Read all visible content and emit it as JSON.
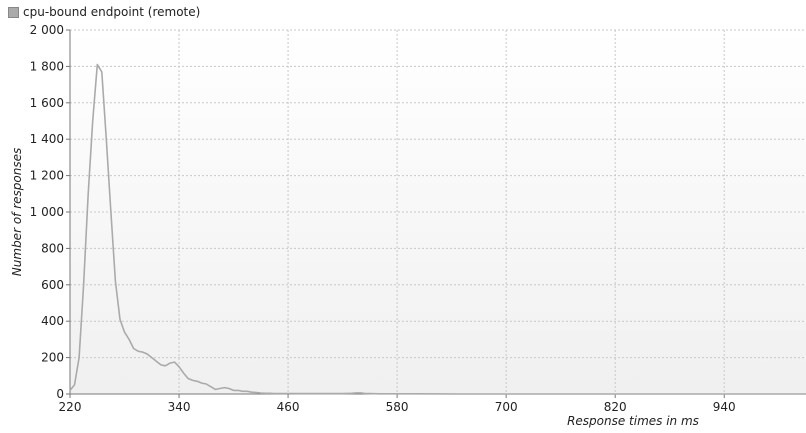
{
  "chart_data": {
    "type": "line",
    "legend": {
      "label": "cpu-bound endpoint (remote)",
      "placement": "top-left",
      "color": "#aaaaaa"
    },
    "xlabel": "Response times in ms",
    "ylabel": "Number of responses",
    "xlim": [
      220,
      1030
    ],
    "ylim": [
      0,
      2000
    ],
    "x_ticks": [
      220,
      340,
      460,
      580,
      700,
      820,
      940
    ],
    "x_tick_labels": [
      "220",
      "340",
      "460",
      "580",
      "700",
      "820",
      "940"
    ],
    "y_ticks": [
      0,
      200,
      400,
      600,
      800,
      1000,
      1200,
      1400,
      1600,
      1800,
      2000
    ],
    "y_tick_labels": [
      "0",
      "200",
      "400",
      "600",
      "800",
      "1 000",
      "1 200",
      "1 400",
      "1 600",
      "1 800",
      "2 000"
    ],
    "grid": true,
    "series": [
      {
        "name": "cpu-bound endpoint (remote)",
        "color": "#aaaaaa",
        "x": [
          220,
          225,
          230,
          235,
          240,
          245,
          250,
          255,
          260,
          265,
          270,
          275,
          280,
          285,
          290,
          295,
          300,
          305,
          310,
          315,
          320,
          325,
          330,
          335,
          340,
          345,
          350,
          355,
          360,
          365,
          370,
          375,
          380,
          385,
          390,
          395,
          400,
          405,
          410,
          415,
          420,
          425,
          430,
          435,
          440,
          445,
          450,
          455,
          460,
          470,
          480,
          490,
          500,
          510,
          520,
          530,
          535,
          540,
          545,
          550,
          560,
          580,
          600,
          650,
          700,
          800,
          900,
          1000,
          1030
        ],
        "y": [
          20,
          50,
          200,
          600,
          1100,
          1500,
          1810,
          1770,
          1400,
          1000,
          620,
          410,
          340,
          300,
          250,
          235,
          230,
          220,
          200,
          180,
          160,
          155,
          170,
          175,
          150,
          115,
          85,
          75,
          70,
          60,
          55,
          40,
          25,
          30,
          35,
          30,
          20,
          20,
          15,
          15,
          10,
          8,
          5,
          4,
          4,
          3,
          3,
          3,
          3,
          2,
          2,
          2,
          2,
          2,
          2,
          4,
          6,
          6,
          3,
          2,
          1,
          1,
          1,
          0,
          0,
          0,
          0,
          0,
          0
        ]
      }
    ]
  }
}
